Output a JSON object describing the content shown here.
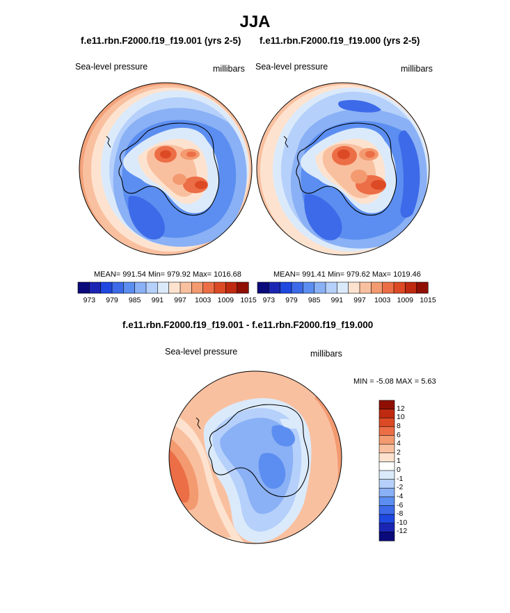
{
  "page_title": "JJA",
  "panels": [
    {
      "case_title": "f.e11.rbn.F2000.f19_f19.001 (yrs 2-5)",
      "left_label": "Sea-level pressure",
      "right_label": "millibars",
      "stats_text": "MEAN= 991.54  Min= 979.92  Max= 1016.68"
    },
    {
      "case_title": "f.e11.rbn.F2000.f19_f19.000 (yrs 2-5)",
      "left_label": "Sea-level pressure",
      "right_label": "millibars",
      "stats_text": "MEAN= 991.41  Min= 979.62  Max= 1019.46"
    }
  ],
  "diff_panel": {
    "title": "f.e11.rbn.F2000.f19_f19.001 - f.e11.rbn.F2000.f19_f19.000",
    "left_label": "Sea-level pressure",
    "right_label": "millibars",
    "minmax_text": "MIN =  -5.08 MAX =   5.63"
  },
  "chart_data": [
    {
      "type": "heatmap",
      "projection": "south-polar-stereographic",
      "field": "Sea-level pressure",
      "units": "millibars",
      "case": "f.e11.rbn.F2000.f19_f19.001 (yrs 2-5)",
      "mean": 991.54,
      "min": 979.92,
      "max": 1016.68,
      "colorbar_levels": [
        973,
        976,
        979,
        982,
        985,
        988,
        991,
        994,
        997,
        1000,
        1003,
        1006,
        1009,
        1012,
        1015
      ],
      "colorbar_tick_labels": [
        "973",
        "979",
        "985",
        "991",
        "997",
        "1003",
        "1009",
        "1015"
      ],
      "colors": [
        "#0a0a7a",
        "#1a26b3",
        "#1f48e0",
        "#3d6ae8",
        "#5b8ef0",
        "#8ab0f5",
        "#b5d0fa",
        "#dbeafb",
        "#fde3cf",
        "#f9c0a0",
        "#f39a70",
        "#ec6e46",
        "#dc4a25",
        "#bf2a10",
        "#8f0f05"
      ]
    },
    {
      "type": "heatmap",
      "projection": "south-polar-stereographic",
      "field": "Sea-level pressure",
      "units": "millibars",
      "case": "f.e11.rbn.F2000.f19_f19.000 (yrs 2-5)",
      "mean": 991.41,
      "min": 979.62,
      "max": 1019.46,
      "colorbar_levels": [
        973,
        976,
        979,
        982,
        985,
        988,
        991,
        994,
        997,
        1000,
        1003,
        1006,
        1009,
        1012,
        1015
      ],
      "colorbar_tick_labels": [
        "973",
        "979",
        "985",
        "991",
        "997",
        "1003",
        "1009",
        "1015"
      ],
      "colors": [
        "#0a0a7a",
        "#1a26b3",
        "#1f48e0",
        "#3d6ae8",
        "#5b8ef0",
        "#8ab0f5",
        "#b5d0fa",
        "#dbeafb",
        "#fde3cf",
        "#f9c0a0",
        "#f39a70",
        "#ec6e46",
        "#dc4a25",
        "#bf2a10",
        "#8f0f05"
      ]
    },
    {
      "type": "heatmap",
      "projection": "south-polar-stereographic",
      "field": "Sea-level pressure difference",
      "units": "millibars",
      "case": "f.e11.rbn.F2000.f19_f19.001 - f.e11.rbn.F2000.f19_f19.000",
      "min": -5.08,
      "max": 5.63,
      "colorbar_levels": [
        12,
        10,
        8,
        6,
        4,
        2,
        1,
        0,
        -1,
        -2,
        -4,
        -6,
        -8,
        -10,
        -12
      ],
      "colorbar_tick_labels": [
        "12",
        "10",
        "8",
        "6",
        "4",
        "2",
        "1",
        "0",
        "-1",
        "-2",
        "-4",
        "-6",
        "-8",
        "-10",
        "-12"
      ],
      "colors": [
        "#8f0f05",
        "#bf2a10",
        "#dc4a25",
        "#ec6e46",
        "#f39a70",
        "#f9c0a0",
        "#fde3cf",
        "#ffffff",
        "#dbeafb",
        "#b5d0fa",
        "#8ab0f5",
        "#5b8ef0",
        "#3d6ae8",
        "#1f48e0",
        "#1a26b3",
        "#0a0a7a"
      ]
    }
  ]
}
